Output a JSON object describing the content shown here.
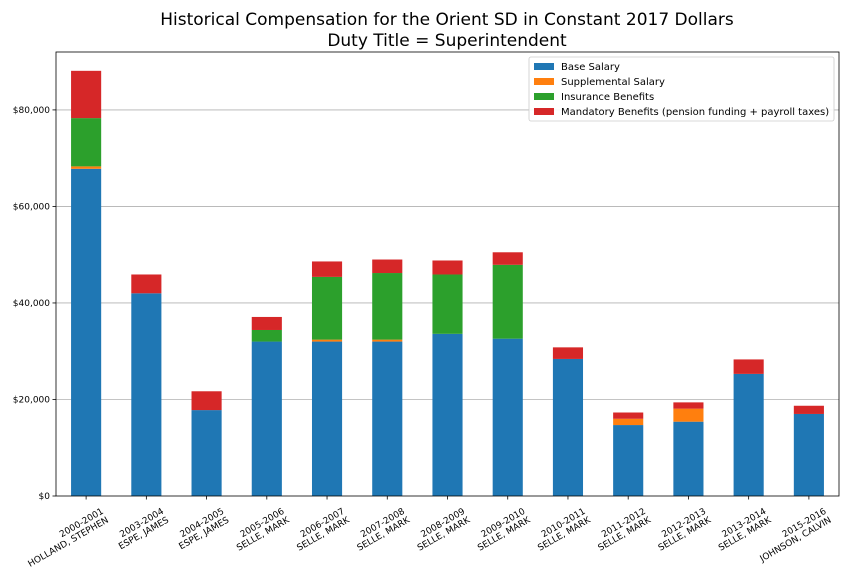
{
  "chart_data": {
    "type": "bar",
    "stacked": true,
    "title": "Historical Compensation for the Orient SD in Constant 2017 Dollars",
    "subtitle": "Duty Title = Superintendent",
    "xlabel": "",
    "ylabel": "",
    "ylim": [
      0,
      92000
    ],
    "yticks": [
      "$0",
      "$20,000",
      "$40,000",
      "$60,000",
      "$80,000"
    ],
    "ytick_values": [
      0,
      20000,
      40000,
      60000,
      80000
    ],
    "grid": "horizontal",
    "legend_position": "top-right",
    "categories": [
      [
        "2000-2001",
        "HOLLAND, STEPHEN"
      ],
      [
        "2003-2004",
        "ESPE, JAMES"
      ],
      [
        "2004-2005",
        "ESPE, JAMES"
      ],
      [
        "2005-2006",
        "SELLE, MARK"
      ],
      [
        "2006-2007",
        "SELLE, MARK"
      ],
      [
        "2007-2008",
        "SELLE, MARK"
      ],
      [
        "2008-2009",
        "SELLE, MARK"
      ],
      [
        "2009-2010",
        "SELLE, MARK"
      ],
      [
        "2010-2011",
        "SELLE, MARK"
      ],
      [
        "2011-2012",
        "SELLE, MARK"
      ],
      [
        "2012-2013",
        "SELLE, MARK"
      ],
      [
        "2013-2014",
        "SELLE, MARK"
      ],
      [
        "2015-2016",
        "JOHNSON, CALVIN"
      ]
    ],
    "series": [
      {
        "name": "Base Salary",
        "color": "#1f77b4",
        "values": [
          67800,
          42000,
          17800,
          32000,
          32000,
          32000,
          33600,
          32600,
          28400,
          14700,
          15400,
          25300,
          17000
        ]
      },
      {
        "name": "Supplemental Salary",
        "color": "#ff7f0e",
        "values": [
          500,
          0,
          0,
          0,
          400,
          400,
          0,
          0,
          0,
          1300,
          2700,
          0,
          0
        ]
      },
      {
        "name": "Insurance Benefits",
        "color": "#2ca02c",
        "values": [
          10000,
          0,
          0,
          2400,
          13000,
          13800,
          12300,
          15300,
          0,
          0,
          0,
          0,
          0
        ]
      },
      {
        "name": "Mandatory Benefits (pension funding + payroll taxes)",
        "color": "#d62728",
        "values": [
          9800,
          3900,
          3900,
          2700,
          3200,
          2800,
          2900,
          2600,
          2400,
          1300,
          1300,
          3000,
          1700
        ]
      }
    ]
  }
}
